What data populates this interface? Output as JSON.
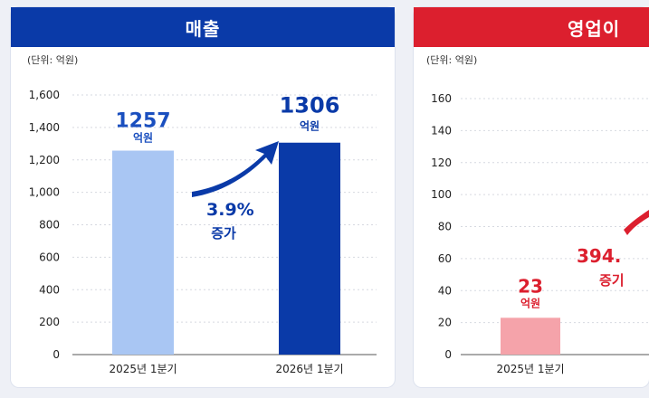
{
  "chart_data": [
    {
      "type": "bar",
      "title": "매출",
      "unit_label": "(단위: 억원)",
      "categories": [
        "2025년 1분기",
        "2026년 1분기"
      ],
      "values": [
        1257,
        1306
      ],
      "value_labels": [
        "1257",
        "1306"
      ],
      "value_unit": "억원",
      "y_ticks": [
        "0",
        "200",
        "400",
        "600",
        "800",
        "1,000",
        "1,200",
        "1,400",
        "1,600"
      ],
      "ylim": [
        0,
        1600
      ],
      "grid": true,
      "growth_pct": "3.9%",
      "growth_word": "증가",
      "colors": {
        "header": "#0a3aa8",
        "bar_prev": "#a9c6f3",
        "bar_curr": "#0a3aa8",
        "value_prev": "#1a4fbf",
        "value_curr": "#0a3aa8",
        "arrow": "#0a3aa8"
      }
    },
    {
      "type": "bar",
      "title": "영업이",
      "unit_label": "(단위: 억원)",
      "categories": [
        "2025년 1분기"
      ],
      "values": [
        23
      ],
      "value_labels": [
        "23"
      ],
      "value_unit": "억원",
      "y_ticks": [
        "0",
        "20",
        "40",
        "60",
        "80",
        "100",
        "120",
        "140",
        "160"
      ],
      "ylim": [
        0,
        160
      ],
      "grid": true,
      "growth_pct": "394.",
      "growth_word": "증기",
      "colors": {
        "header": "#dc1f2e",
        "bar_prev": "#f5a3aa",
        "value_prev": "#dc1f2e",
        "arrow": "#dc1f2e"
      }
    }
  ]
}
